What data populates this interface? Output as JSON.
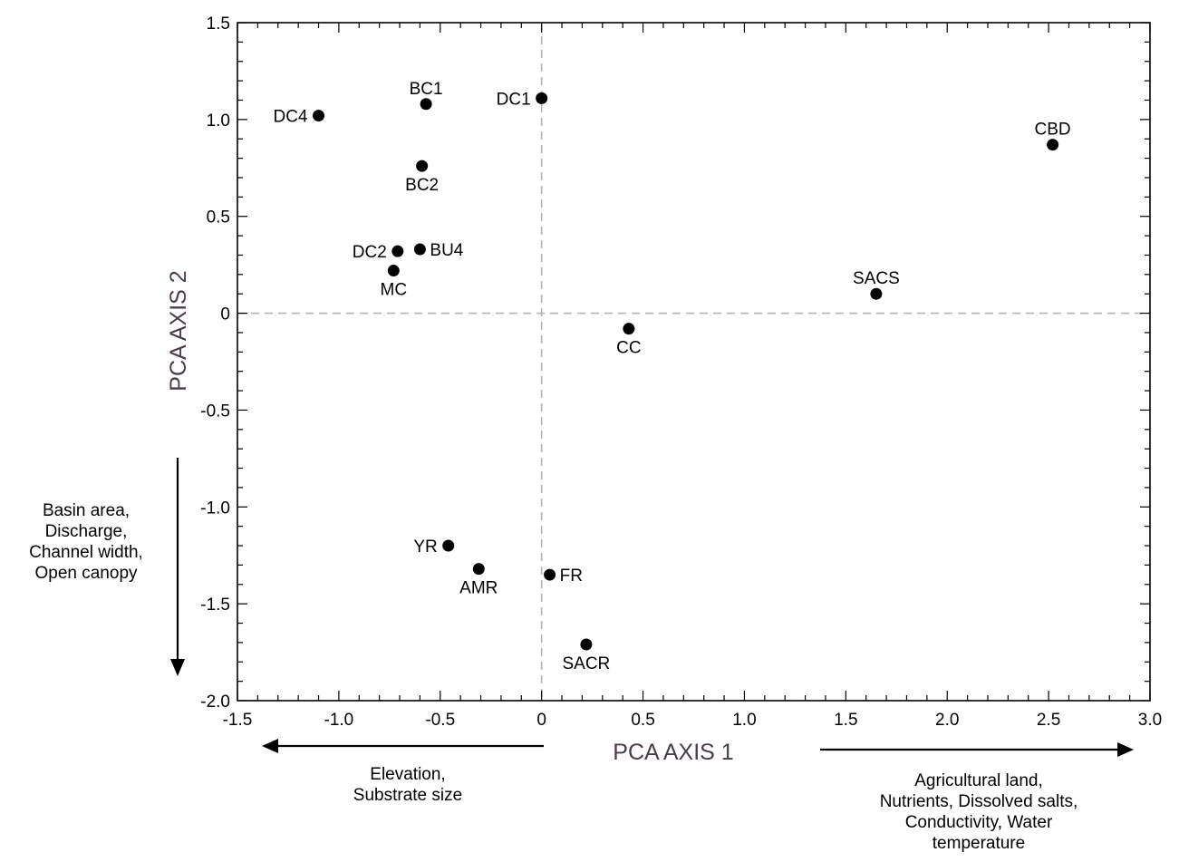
{
  "chart_data": {
    "type": "scatter",
    "title": "",
    "xlabel": "PCA  AXIS 1",
    "ylabel": "PCA  AXIS 2",
    "xlim": [
      -1.5,
      3.0
    ],
    "ylim": [
      -2.0,
      1.5
    ],
    "x_ticks": [
      "-1.5",
      "-1.0",
      "-0.5",
      "0",
      "0.5",
      "1.0",
      "1.5",
      "2.0",
      "2.5",
      "3.0"
    ],
    "y_ticks": [
      "1.5",
      "1.0",
      "0.5",
      "0",
      "-0.5",
      "-1.0",
      "-1.5",
      "-2.0"
    ],
    "grid": false,
    "reference_lines": "dashed lines at x=0 and y=0",
    "points": [
      {
        "label": "DC4",
        "x": -1.1,
        "y": 1.02,
        "label_pos": "left"
      },
      {
        "label": "BC1",
        "x": -0.57,
        "y": 1.08,
        "label_pos": "top"
      },
      {
        "label": "DC1",
        "x": 0.0,
        "y": 1.11,
        "label_pos": "left"
      },
      {
        "label": "CBD",
        "x": 2.52,
        "y": 0.87,
        "label_pos": "top"
      },
      {
        "label": "BC2",
        "x": -0.59,
        "y": 0.76,
        "label_pos": "bottom"
      },
      {
        "label": "DC2",
        "x": -0.71,
        "y": 0.32,
        "label_pos": "left"
      },
      {
        "label": "BU4",
        "x": -0.6,
        "y": 0.33,
        "label_pos": "right"
      },
      {
        "label": "MC",
        "x": -0.73,
        "y": 0.22,
        "label_pos": "bottom"
      },
      {
        "label": "SACS",
        "x": 1.65,
        "y": 0.1,
        "label_pos": "top"
      },
      {
        "label": "CC",
        "x": 0.43,
        "y": -0.08,
        "label_pos": "bottom"
      },
      {
        "label": "YR",
        "x": -0.46,
        "y": -1.2,
        "label_pos": "left"
      },
      {
        "label": "AMR",
        "x": -0.31,
        "y": -1.32,
        "label_pos": "bottom"
      },
      {
        "label": "FR",
        "x": 0.04,
        "y": -1.35,
        "label_pos": "right"
      },
      {
        "label": "SACR",
        "x": 0.22,
        "y": -1.71,
        "label_pos": "bottom"
      }
    ]
  },
  "annotations": {
    "left_arrow_text": [
      "Elevation,",
      "Substrate size"
    ],
    "right_arrow_text": [
      "Agricultural land,",
      "Nutrients, Dissolved salts,",
      "Conductivity, Water",
      "temperature"
    ],
    "down_arrow_text": [
      "Basin area,",
      "Discharge,",
      "Channel width,",
      "Open canopy"
    ]
  },
  "colors": {
    "axis": "#000000",
    "point": "#000000",
    "reference_line": "#b3b3b3",
    "axis_title": "#4a3c48"
  }
}
